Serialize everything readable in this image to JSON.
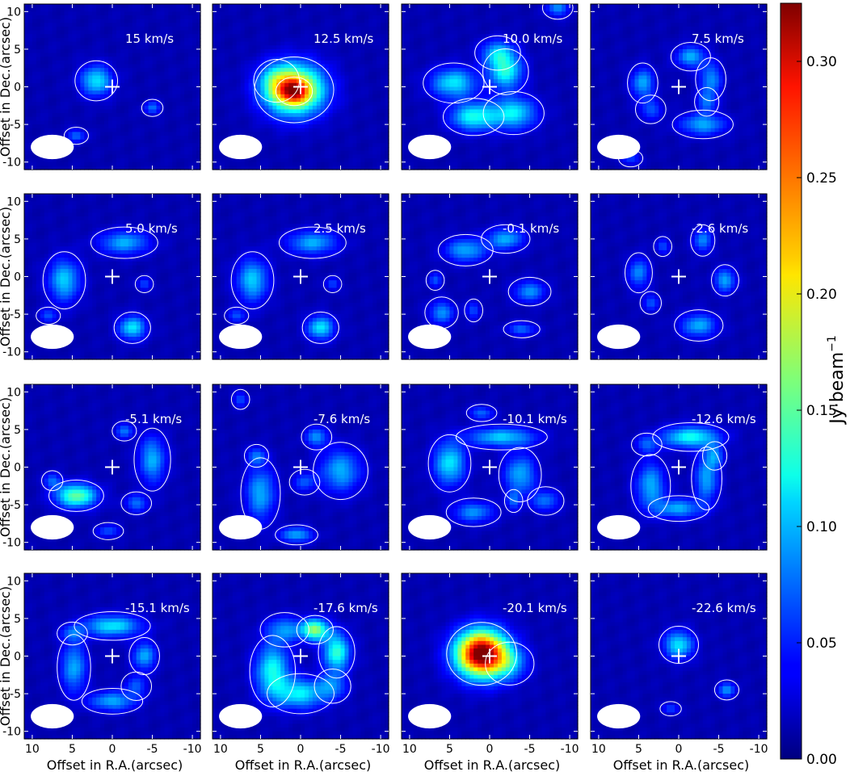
{
  "chart_data": {
    "type": "heatmap",
    "description_units": "Channel maps of line emission; each panel is a velocity channel",
    "xlabel": "Offset in R.A.(arcsec)",
    "ylabel": "Offset in Dec.(arcsec)",
    "xlim": [
      11,
      -11
    ],
    "ylim": [
      -11,
      11
    ],
    "xticks": [
      10,
      5,
      0,
      -5,
      -10
    ],
    "yticks": [
      10,
      5,
      0,
      -5,
      -10
    ],
    "colorbar": {
      "label": "Jy·beam",
      "label_exponent": "−1",
      "min": 0.0,
      "max": 0.325,
      "ticks": [
        0.0,
        0.05,
        0.1,
        0.15,
        0.2,
        0.25,
        0.3
      ],
      "tick_labels": [
        "0.00",
        "0.05",
        "0.10",
        "0.15",
        "0.20",
        "0.25",
        "0.30"
      ],
      "colormap": "jet"
    },
    "center_marker": {
      "x": 0,
      "y": 0,
      "symbol": "+"
    },
    "beam": {
      "x": 7.5,
      "y": -8,
      "major_arcsec": 4.3,
      "minor_arcsec": 2.6
    },
    "panels": [
      {
        "label": "15 km/s",
        "blobs": [
          {
            "x": 2,
            "y": 0.8,
            "sx": 1.4,
            "sy": 1.4,
            "a": 0.1
          },
          {
            "x": -5,
            "y": -2.8,
            "sx": 0.7,
            "sy": 0.6,
            "a": 0.06
          },
          {
            "x": 4.5,
            "y": -6.5,
            "sx": 0.8,
            "sy": 0.6,
            "a": 0.06
          }
        ]
      },
      {
        "label": "12.5 km/s",
        "blobs": [
          {
            "x": 0.8,
            "y": -0.4,
            "sx": 2.6,
            "sy": 2.3,
            "a": 0.22
          },
          {
            "x": 0.8,
            "y": -0.6,
            "sx": 1.2,
            "sy": 1.0,
            "a": 0.1
          },
          {
            "x": 3,
            "y": 0.8,
            "sx": 1.5,
            "sy": 1.5,
            "a": 0.05
          }
        ]
      },
      {
        "label": "10.0 km/s",
        "blobs": [
          {
            "x": -2,
            "y": 2,
            "sx": 1.5,
            "sy": 1.6,
            "a": 0.11
          },
          {
            "x": 4.5,
            "y": 0.5,
            "sx": 2,
            "sy": 1.4,
            "a": 0.1
          },
          {
            "x": 2,
            "y": -4,
            "sx": 2,
            "sy": 1.3,
            "a": 0.11
          },
          {
            "x": -3,
            "y": -3.5,
            "sx": 2,
            "sy": 1.5,
            "a": 0.1
          },
          {
            "x": -1,
            "y": 4.5,
            "sx": 1.5,
            "sy": 1.2,
            "a": 0.08
          },
          {
            "x": -8.5,
            "y": 10.5,
            "sx": 1,
            "sy": 0.8,
            "a": 0.07
          }
        ]
      },
      {
        "label": "7.5 km/s",
        "blobs": [
          {
            "x": -1.5,
            "y": 4,
            "sx": 1.3,
            "sy": 1,
            "a": 0.08
          },
          {
            "x": 4.5,
            "y": 0.5,
            "sx": 1,
            "sy": 1.4,
            "a": 0.08
          },
          {
            "x": -4,
            "y": 1,
            "sx": 1,
            "sy": 1.5,
            "a": 0.07
          },
          {
            "x": -3,
            "y": -5,
            "sx": 2,
            "sy": 1,
            "a": 0.08
          },
          {
            "x": -3.5,
            "y": -2,
            "sx": 0.8,
            "sy": 1,
            "a": 0.06
          },
          {
            "x": 3.5,
            "y": -3,
            "sx": 1,
            "sy": 1,
            "a": 0.05
          },
          {
            "x": 6,
            "y": -9.5,
            "sx": 0.8,
            "sy": 0.6,
            "a": 0.05
          }
        ]
      },
      {
        "label": "5.0 km/s",
        "blobs": [
          {
            "x": -1.5,
            "y": 4.5,
            "sx": 2.2,
            "sy": 1.1,
            "a": 0.08
          },
          {
            "x": 6,
            "y": -0.5,
            "sx": 1.4,
            "sy": 2,
            "a": 0.09
          },
          {
            "x": -2.5,
            "y": -6.8,
            "sx": 1.2,
            "sy": 1.1,
            "a": 0.1
          },
          {
            "x": 8,
            "y": -5.2,
            "sx": 0.8,
            "sy": 0.6,
            "a": 0.05
          },
          {
            "x": -4,
            "y": -1,
            "sx": 0.6,
            "sy": 0.6,
            "a": 0.05
          }
        ]
      },
      {
        "label": "2.5 km/s",
        "blobs": [
          {
            "x": -1.5,
            "y": 4.5,
            "sx": 2.2,
            "sy": 1.1,
            "a": 0.08
          },
          {
            "x": 6,
            "y": -0.5,
            "sx": 1.4,
            "sy": 2,
            "a": 0.09
          },
          {
            "x": -2.5,
            "y": -6.8,
            "sx": 1.2,
            "sy": 1.1,
            "a": 0.1
          },
          {
            "x": 8,
            "y": -5.2,
            "sx": 0.8,
            "sy": 0.6,
            "a": 0.05
          },
          {
            "x": -4,
            "y": -1,
            "sx": 0.6,
            "sy": 0.6,
            "a": 0.05
          }
        ]
      },
      {
        "label": "-0.1 km/s",
        "blobs": [
          {
            "x": 3,
            "y": 3.5,
            "sx": 1.8,
            "sy": 1.1,
            "a": 0.08
          },
          {
            "x": -2,
            "y": 5,
            "sx": 1.6,
            "sy": 1.0,
            "a": 0.08
          },
          {
            "x": 6,
            "y": -4.8,
            "sx": 1.1,
            "sy": 1.1,
            "a": 0.07
          },
          {
            "x": -5,
            "y": -2,
            "sx": 1.4,
            "sy": 1,
            "a": 0.07
          },
          {
            "x": -4,
            "y": -7,
            "sx": 1.2,
            "sy": 0.6,
            "a": 0.06
          },
          {
            "x": 2,
            "y": -4.5,
            "sx": 0.6,
            "sy": 0.8,
            "a": 0.05
          },
          {
            "x": 6.8,
            "y": -0.5,
            "sx": 0.6,
            "sy": 0.7,
            "a": 0.05
          }
        ]
      },
      {
        "label": "-2.6 km/s",
        "blobs": [
          {
            "x": -3,
            "y": 4.8,
            "sx": 0.8,
            "sy": 1.1,
            "a": 0.07
          },
          {
            "x": -5.8,
            "y": -0.5,
            "sx": 0.9,
            "sy": 1.1,
            "a": 0.08
          },
          {
            "x": 5,
            "y": 0.5,
            "sx": 0.9,
            "sy": 1.4,
            "a": 0.07
          },
          {
            "x": -2.5,
            "y": -6.5,
            "sx": 1.6,
            "sy": 1.1,
            "a": 0.08
          },
          {
            "x": 3.5,
            "y": -3.5,
            "sx": 0.7,
            "sy": 0.8,
            "a": 0.05
          },
          {
            "x": 2,
            "y": 4,
            "sx": 0.6,
            "sy": 0.7,
            "a": 0.05
          }
        ]
      },
      {
        "label": "-5.1 km/s",
        "blobs": [
          {
            "x": 4.5,
            "y": -3.8,
            "sx": 1.8,
            "sy": 1.1,
            "a": 0.14
          },
          {
            "x": -5,
            "y": 1,
            "sx": 1.2,
            "sy": 2.2,
            "a": 0.08
          },
          {
            "x": -1.5,
            "y": 4.8,
            "sx": 0.8,
            "sy": 0.7,
            "a": 0.06
          },
          {
            "x": 7.5,
            "y": -1.8,
            "sx": 0.7,
            "sy": 0.7,
            "a": 0.06
          },
          {
            "x": -3,
            "y": -4.8,
            "sx": 1,
            "sy": 0.8,
            "a": 0.06
          },
          {
            "x": 0.5,
            "y": -8.5,
            "sx": 1,
            "sy": 0.6,
            "a": 0.05
          }
        ]
      },
      {
        "label": "-7.6 km/s",
        "blobs": [
          {
            "x": 5,
            "y": -3.5,
            "sx": 1.3,
            "sy": 2.5,
            "a": 0.08
          },
          {
            "x": -5,
            "y": -0.5,
            "sx": 1.8,
            "sy": 2.0,
            "a": 0.08
          },
          {
            "x": -2,
            "y": 4,
            "sx": 1.0,
            "sy": 0.9,
            "a": 0.07
          },
          {
            "x": 0.5,
            "y": -9,
            "sx": 1.4,
            "sy": 0.7,
            "a": 0.08
          },
          {
            "x": 5.5,
            "y": 1.5,
            "sx": 0.8,
            "sy": 0.8,
            "a": 0.06
          },
          {
            "x": 7.5,
            "y": 9,
            "sx": 0.6,
            "sy": 0.7,
            "a": 0.05
          },
          {
            "x": -0.5,
            "y": -2,
            "sx": 1,
            "sy": 0.9,
            "a": 0.05
          }
        ]
      },
      {
        "label": "-10.1 km/s",
        "blobs": [
          {
            "x": -1.5,
            "y": 4,
            "sx": 3,
            "sy": 0.9,
            "a": 0.09
          },
          {
            "x": 5,
            "y": 0.5,
            "sx": 1.4,
            "sy": 2,
            "a": 0.1
          },
          {
            "x": -3.8,
            "y": -1,
            "sx": 1.4,
            "sy": 1.9,
            "a": 0.08
          },
          {
            "x": 2,
            "y": -6,
            "sx": 1.8,
            "sy": 1,
            "a": 0.07
          },
          {
            "x": -7,
            "y": -4.5,
            "sx": 1.2,
            "sy": 1,
            "a": 0.06
          },
          {
            "x": 1,
            "y": 7.2,
            "sx": 1,
            "sy": 0.6,
            "a": 0.06
          },
          {
            "x": -3,
            "y": -4.5,
            "sx": 0.6,
            "sy": 0.8,
            "a": 0.05
          }
        ]
      },
      {
        "label": "-12.6 km/s",
        "blobs": [
          {
            "x": -1.5,
            "y": 4,
            "sx": 2.5,
            "sy": 1,
            "a": 0.11
          },
          {
            "x": 3.5,
            "y": -2.5,
            "sx": 1.3,
            "sy": 2.2,
            "a": 0.08
          },
          {
            "x": -3.5,
            "y": -1.5,
            "sx": 1.0,
            "sy": 2.2,
            "a": 0.08
          },
          {
            "x": 0,
            "y": -5.5,
            "sx": 2,
            "sy": 0.9,
            "a": 0.08
          },
          {
            "x": -4.5,
            "y": 1.5,
            "sx": 0.8,
            "sy": 1.0,
            "a": 0.06
          },
          {
            "x": 4,
            "y": 3,
            "sx": 1,
            "sy": 0.8,
            "a": 0.05
          }
        ]
      },
      {
        "label": "-15.1 km/s",
        "blobs": [
          {
            "x": 0,
            "y": 4,
            "sx": 2.5,
            "sy": 1,
            "a": 0.1
          },
          {
            "x": 4.8,
            "y": -1.5,
            "sx": 1.1,
            "sy": 2.3,
            "a": 0.08
          },
          {
            "x": -4,
            "y": 0,
            "sx": 1,
            "sy": 1.3,
            "a": 0.08
          },
          {
            "x": 0,
            "y": -6,
            "sx": 2,
            "sy": 0.9,
            "a": 0.08
          },
          {
            "x": -3,
            "y": -4,
            "sx": 1,
            "sy": 1,
            "a": 0.05
          },
          {
            "x": 5,
            "y": 3,
            "sx": 1,
            "sy": 0.8,
            "a": 0.05
          }
        ]
      },
      {
        "label": "-17.6 km/s",
        "blobs": [
          {
            "x": -1.8,
            "y": 3.5,
            "sx": 1.2,
            "sy": 1,
            "a": 0.15
          },
          {
            "x": 3.5,
            "y": -2,
            "sx": 1.5,
            "sy": 2.5,
            "a": 0.11
          },
          {
            "x": -4.5,
            "y": 0.5,
            "sx": 1.2,
            "sy": 1.8,
            "a": 0.12
          },
          {
            "x": 0,
            "y": -5,
            "sx": 2.2,
            "sy": 1.4,
            "a": 0.1
          },
          {
            "x": 2,
            "y": 3.5,
            "sx": 1.6,
            "sy": 1.2,
            "a": 0.07
          },
          {
            "x": -4,
            "y": -4,
            "sx": 1.2,
            "sy": 1.2,
            "a": 0.06
          }
        ]
      },
      {
        "label": "-20.1 km/s",
        "blobs": [
          {
            "x": 1,
            "y": 0.3,
            "sx": 2.3,
            "sy": 2.2,
            "a": 0.3
          },
          {
            "x": 1,
            "y": 0.3,
            "sx": 1.2,
            "sy": 1.1,
            "a": 0.04
          },
          {
            "x": -2.5,
            "y": -1,
            "sx": 1.6,
            "sy": 1.5,
            "a": 0.06
          }
        ]
      },
      {
        "label": "-22.6 km/s",
        "blobs": [
          {
            "x": 0,
            "y": 1.5,
            "sx": 1.3,
            "sy": 1.3,
            "a": 0.1
          },
          {
            "x": -6,
            "y": -4.5,
            "sx": 0.8,
            "sy": 0.7,
            "a": 0.07
          },
          {
            "x": 1,
            "y": -7,
            "sx": 0.7,
            "sy": 0.5,
            "a": 0.05
          }
        ]
      }
    ]
  }
}
